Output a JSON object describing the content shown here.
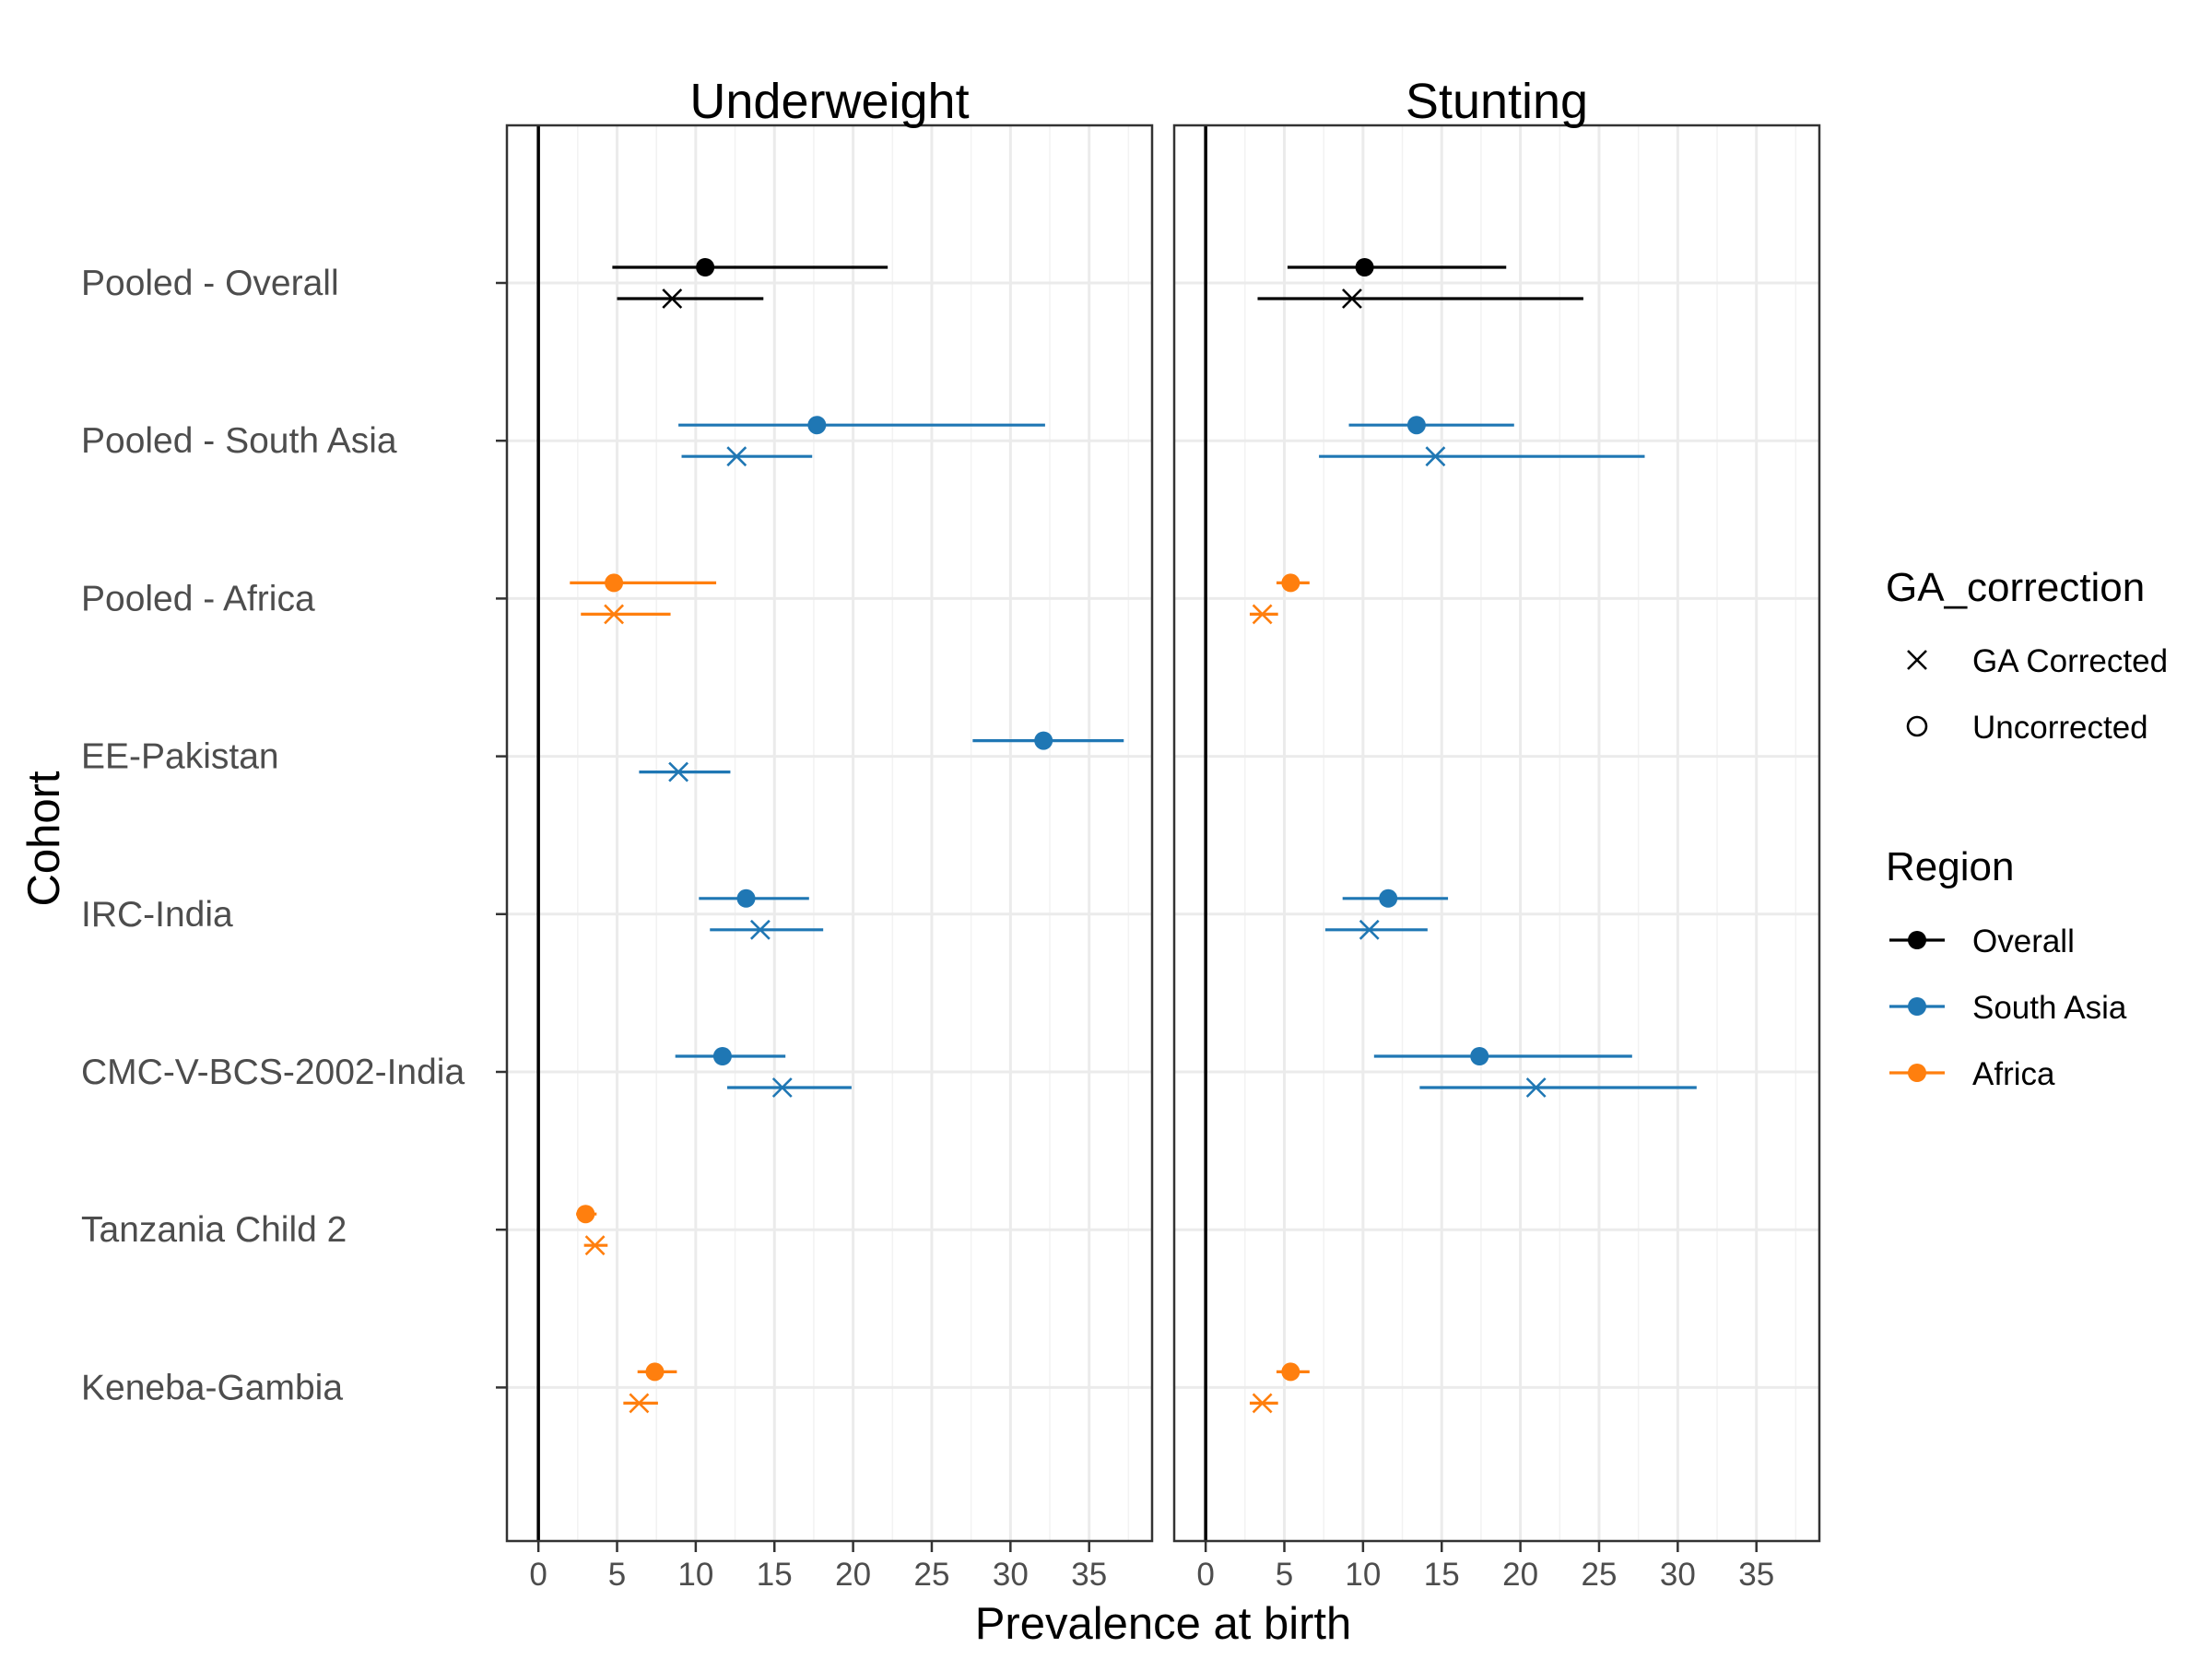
{
  "chart_data": {
    "type": "scatter",
    "subtype": "forest-plot-with-error-bars",
    "x_axis_title": "Prevalence at birth",
    "y_axis_title": "Cohort",
    "xlim": [
      -2,
      39
    ],
    "x_ticks": [
      0,
      5,
      10,
      15,
      20,
      25,
      30,
      35
    ],
    "reference_line_x": 0,
    "grid": true,
    "legend_position": "right",
    "facets": [
      "Underweight",
      "Stunting"
    ],
    "cohorts": [
      "Pooled - Overall",
      "Pooled - South Asia",
      "Pooled - Africa",
      "EE-Pakistan",
      "IRC-India",
      "CMC-V-BCS-2002-India",
      "Tanzania Child 2",
      "Keneba-Gambia"
    ],
    "legend": {
      "shape": {
        "title": "GA_correction",
        "items": [
          {
            "label": "GA Corrected",
            "shape": "x"
          },
          {
            "label": "Uncorrected",
            "shape": "circle"
          }
        ]
      },
      "color": {
        "title": "Region",
        "items": [
          {
            "label": "Overall",
            "color": "#000000"
          },
          {
            "label": "South Asia",
            "color": "#1f77b4"
          },
          {
            "label": "Africa",
            "color": "#ff7f0e"
          }
        ]
      }
    },
    "series": [
      {
        "facet": "Underweight",
        "cohort": "Pooled - Overall",
        "region": "Overall",
        "correction": "Uncorrected",
        "estimate": 10.6,
        "lower": 4.7,
        "upper": 22.2
      },
      {
        "facet": "Underweight",
        "cohort": "Pooled - Overall",
        "region": "Overall",
        "correction": "GA Corrected",
        "estimate": 8.5,
        "lower": 5.0,
        "upper": 14.3
      },
      {
        "facet": "Underweight",
        "cohort": "Pooled - South Asia",
        "region": "South Asia",
        "correction": "Uncorrected",
        "estimate": 17.7,
        "lower": 8.9,
        "upper": 32.2
      },
      {
        "facet": "Underweight",
        "cohort": "Pooled - South Asia",
        "region": "South Asia",
        "correction": "GA Corrected",
        "estimate": 12.6,
        "lower": 9.1,
        "upper": 17.4
      },
      {
        "facet": "Underweight",
        "cohort": "Pooled - Africa",
        "region": "Africa",
        "correction": "Uncorrected",
        "estimate": 4.8,
        "lower": 2.0,
        "upper": 11.3
      },
      {
        "facet": "Underweight",
        "cohort": "Pooled - Africa",
        "region": "Africa",
        "correction": "GA Corrected",
        "estimate": 4.8,
        "lower": 2.7,
        "upper": 8.4
      },
      {
        "facet": "Underweight",
        "cohort": "EE-Pakistan",
        "region": "South Asia",
        "correction": "Uncorrected",
        "estimate": 32.1,
        "lower": 27.6,
        "upper": 37.2
      },
      {
        "facet": "Underweight",
        "cohort": "EE-Pakistan",
        "region": "South Asia",
        "correction": "GA Corrected",
        "estimate": 8.9,
        "lower": 6.4,
        "upper": 12.2
      },
      {
        "facet": "Underweight",
        "cohort": "IRC-India",
        "region": "South Asia",
        "correction": "Uncorrected",
        "estimate": 13.2,
        "lower": 10.2,
        "upper": 17.2
      },
      {
        "facet": "Underweight",
        "cohort": "IRC-India",
        "region": "South Asia",
        "correction": "GA Corrected",
        "estimate": 14.1,
        "lower": 10.9,
        "upper": 18.1
      },
      {
        "facet": "Underweight",
        "cohort": "CMC-V-BCS-2002-India",
        "region": "South Asia",
        "correction": "Uncorrected",
        "estimate": 11.7,
        "lower": 8.7,
        "upper": 15.7
      },
      {
        "facet": "Underweight",
        "cohort": "CMC-V-BCS-2002-India",
        "region": "South Asia",
        "correction": "GA Corrected",
        "estimate": 15.5,
        "lower": 12.0,
        "upper": 19.9
      },
      {
        "facet": "Underweight",
        "cohort": "Tanzania Child 2",
        "region": "Africa",
        "correction": "Uncorrected",
        "estimate": 3.0,
        "lower": 2.4,
        "upper": 3.7
      },
      {
        "facet": "Underweight",
        "cohort": "Tanzania Child 2",
        "region": "Africa",
        "correction": "GA Corrected",
        "estimate": 3.6,
        "lower": 2.9,
        "upper": 4.4
      },
      {
        "facet": "Underweight",
        "cohort": "Keneba-Gambia",
        "region": "Africa",
        "correction": "Uncorrected",
        "estimate": 7.4,
        "lower": 6.3,
        "upper": 8.8
      },
      {
        "facet": "Underweight",
        "cohort": "Keneba-Gambia",
        "region": "Africa",
        "correction": "GA Corrected",
        "estimate": 6.4,
        "lower": 5.4,
        "upper": 7.6
      },
      {
        "facet": "Stunting",
        "cohort": "Pooled - Overall",
        "region": "Overall",
        "correction": "Uncorrected",
        "estimate": 10.1,
        "lower": 5.2,
        "upper": 19.1
      },
      {
        "facet": "Stunting",
        "cohort": "Pooled - Overall",
        "region": "Overall",
        "correction": "GA Corrected",
        "estimate": 9.3,
        "lower": 3.3,
        "upper": 24.0
      },
      {
        "facet": "Stunting",
        "cohort": "Pooled - South Asia",
        "region": "South Asia",
        "correction": "Uncorrected",
        "estimate": 13.4,
        "lower": 9.1,
        "upper": 19.6
      },
      {
        "facet": "Stunting",
        "cohort": "Pooled - South Asia",
        "region": "South Asia",
        "correction": "GA Corrected",
        "estimate": 14.6,
        "lower": 7.2,
        "upper": 27.9
      },
      {
        "facet": "Stunting",
        "cohort": "Pooled - Africa",
        "region": "Africa",
        "correction": "Uncorrected",
        "estimate": 5.4,
        "lower": 4.5,
        "upper": 6.6
      },
      {
        "facet": "Stunting",
        "cohort": "Pooled - Africa",
        "region": "Africa",
        "correction": "GA Corrected",
        "estimate": 3.6,
        "lower": 2.8,
        "upper": 4.6
      },
      {
        "facet": "Stunting",
        "cohort": "IRC-India",
        "region": "South Asia",
        "correction": "Uncorrected",
        "estimate": 11.6,
        "lower": 8.7,
        "upper": 15.4
      },
      {
        "facet": "Stunting",
        "cohort": "IRC-India",
        "region": "South Asia",
        "correction": "GA Corrected",
        "estimate": 10.4,
        "lower": 7.6,
        "upper": 14.1
      },
      {
        "facet": "Stunting",
        "cohort": "CMC-V-BCS-2002-India",
        "region": "South Asia",
        "correction": "Uncorrected",
        "estimate": 17.4,
        "lower": 10.7,
        "upper": 27.1
      },
      {
        "facet": "Stunting",
        "cohort": "CMC-V-BCS-2002-India",
        "region": "South Asia",
        "correction": "GA Corrected",
        "estimate": 21.0,
        "lower": 13.6,
        "upper": 31.2
      },
      {
        "facet": "Stunting",
        "cohort": "Keneba-Gambia",
        "region": "Africa",
        "correction": "Uncorrected",
        "estimate": 5.4,
        "lower": 4.5,
        "upper": 6.6
      },
      {
        "facet": "Stunting",
        "cohort": "Keneba-Gambia",
        "region": "Africa",
        "correction": "GA Corrected",
        "estimate": 3.6,
        "lower": 2.8,
        "upper": 4.6
      }
    ]
  }
}
